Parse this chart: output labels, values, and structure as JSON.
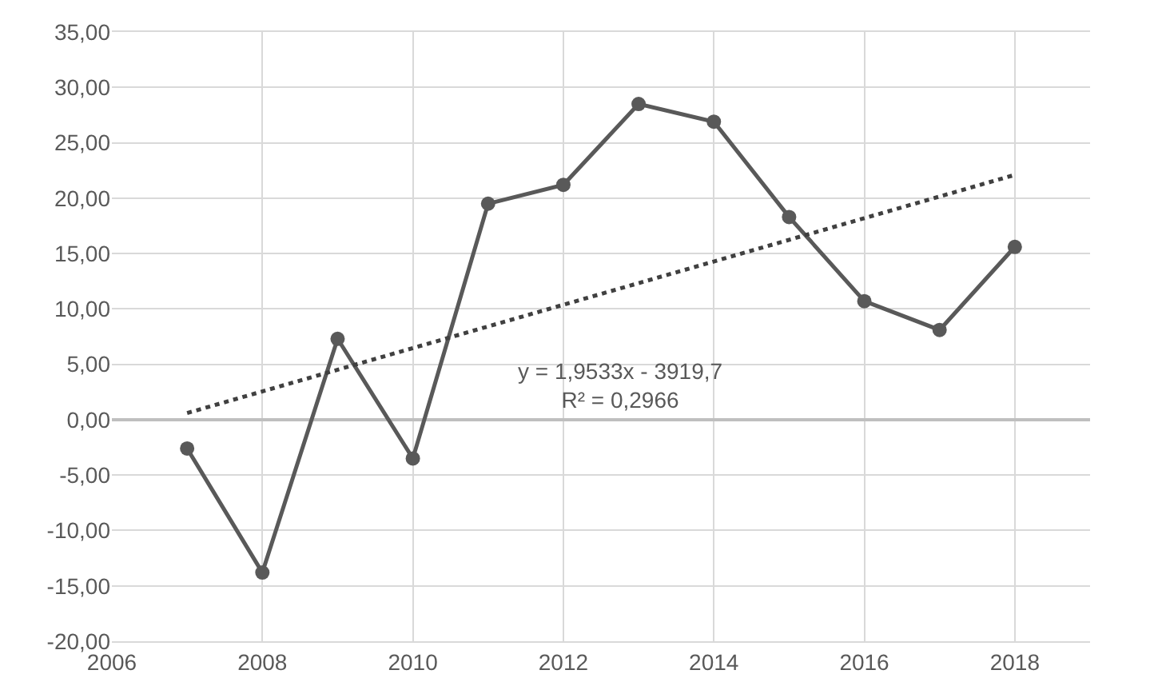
{
  "chart_data": {
    "type": "line",
    "x": [
      2007,
      2008,
      2009,
      2010,
      2011,
      2012,
      2013,
      2014,
      2015,
      2016,
      2017,
      2018
    ],
    "series": [
      {
        "color": "#595959",
        "marker": "circle",
        "line_style": "solid",
        "values": [
          -2.6,
          -13.8,
          7.3,
          -3.5,
          19.5,
          21.2,
          28.5,
          26.9,
          18.3,
          10.7,
          8.1,
          15.6
        ]
      },
      {
        "type": "line",
        "color": "#404040",
        "marker": "none",
        "line_style": "dotted",
        "x": [
          2007,
          2018
        ],
        "values": [
          0.6,
          22.1
        ]
      }
    ],
    "annotations": [
      "y = 1,9533x - 3919,7\nR² = 0,2966"
    ],
    "xlim": [
      2006,
      2019
    ],
    "xticks": [
      2006,
      2008,
      2010,
      2012,
      2014,
      2016,
      2018
    ],
    "ylim": [
      -20,
      35
    ],
    "yticks": [
      {
        "value": -20,
        "label": "-20,00"
      },
      {
        "value": -15,
        "label": "-15,00"
      },
      {
        "value": -10,
        "label": "-10,00"
      },
      {
        "value": -5,
        "label": "-5,00"
      },
      {
        "value": 0,
        "label": "0,00"
      },
      {
        "value": 5,
        "label": "5,00"
      },
      {
        "value": 10,
        "label": "10,00"
      },
      {
        "value": 15,
        "label": "15,00"
      },
      {
        "value": 20,
        "label": "20,00"
      },
      {
        "value": 25,
        "label": "25,00"
      },
      {
        "value": 30,
        "label": "30,00"
      },
      {
        "value": 35,
        "label": "35,00"
      }
    ],
    "grid": true
  }
}
